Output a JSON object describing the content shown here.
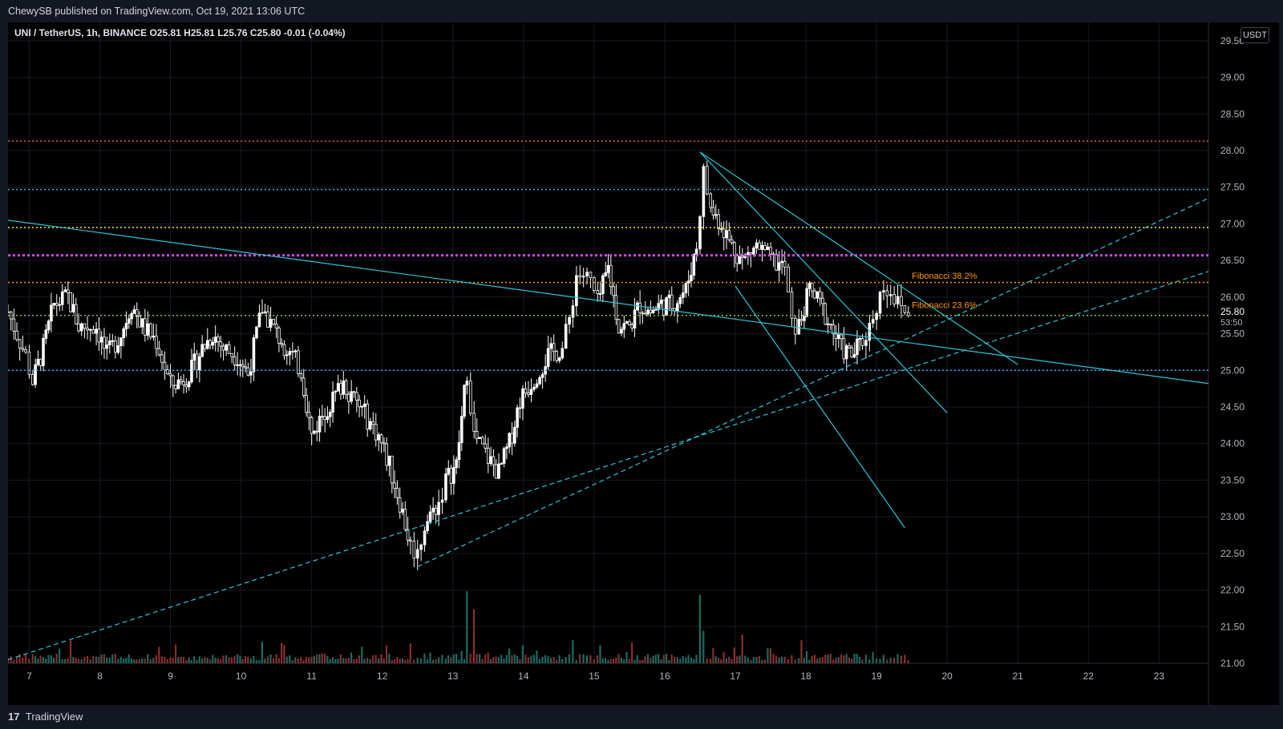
{
  "header": {
    "published": "ChewySB published on TradingView.com, Oct 19, 2021 13:06 UTC"
  },
  "legend": {
    "text": "UNI / TetherUS, 1h, BINANCE  O25.81  H25.81  L25.76  C25.80  -0.01 (-0.04%)"
  },
  "currency": "USDT",
  "brand": {
    "logo": "17",
    "name": "TradingView"
  },
  "chart_data": {
    "type": "candlestick",
    "symbol": "UNI / TetherUS",
    "interval": "1h",
    "exchange": "BINANCE",
    "ohlc_last": {
      "open": 25.81,
      "high": 25.81,
      "low": 25.76,
      "close": 25.8,
      "change": -0.01,
      "change_pct": -0.04
    },
    "x_range": [
      6.7,
      23.7
    ],
    "y_range": [
      21.0,
      29.75
    ],
    "x_ticks": [
      "7",
      "8",
      "9",
      "10",
      "11",
      "12",
      "13",
      "14",
      "15",
      "16",
      "17",
      "18",
      "19",
      "20",
      "21",
      "22",
      "23"
    ],
    "y_ticks": [
      "29.50",
      "29.00",
      "28.50",
      "28.00",
      "27.50",
      "27.00",
      "26.50",
      "26.00",
      "25.50",
      "25.00",
      "24.50",
      "24.00",
      "23.50",
      "23.00",
      "22.50",
      "22.00",
      "21.50",
      "21.00"
    ],
    "price_tag": {
      "price": 25.8,
      "countdown": "53:50",
      "label": "25.80"
    },
    "path_anchors": [
      [
        6.7,
        25.8
      ],
      [
        6.95,
        25.2
      ],
      [
        7.05,
        24.85
      ],
      [
        7.2,
        25.3
      ],
      [
        7.35,
        25.9
      ],
      [
        7.55,
        26.0
      ],
      [
        7.7,
        25.6
      ],
      [
        7.95,
        25.6
      ],
      [
        8.1,
        25.2
      ],
      [
        8.3,
        25.5
      ],
      [
        8.45,
        25.9
      ],
      [
        8.6,
        25.6
      ],
      [
        8.8,
        25.4
      ],
      [
        9.0,
        24.8
      ],
      [
        9.15,
        24.85
      ],
      [
        9.3,
        25.0
      ],
      [
        9.45,
        25.3
      ],
      [
        9.6,
        25.5
      ],
      [
        9.75,
        25.3
      ],
      [
        9.95,
        25.2
      ],
      [
        10.1,
        24.95
      ],
      [
        10.3,
        25.85
      ],
      [
        10.5,
        25.5
      ],
      [
        10.65,
        25.3
      ],
      [
        10.85,
        25.0
      ],
      [
        11.0,
        24.1
      ],
      [
        11.15,
        24.4
      ],
      [
        11.3,
        24.6
      ],
      [
        11.45,
        24.85
      ],
      [
        11.6,
        24.6
      ],
      [
        11.75,
        24.4
      ],
      [
        11.95,
        24.1
      ],
      [
        12.1,
        23.7
      ],
      [
        12.25,
        23.2
      ],
      [
        12.4,
        22.6
      ],
      [
        12.5,
        22.5
      ],
      [
        12.6,
        22.9
      ],
      [
        12.8,
        23.2
      ],
      [
        12.9,
        23.5
      ],
      [
        13.05,
        23.7
      ],
      [
        13.2,
        25.0
      ],
      [
        13.3,
        24.1
      ],
      [
        13.5,
        23.8
      ],
      [
        13.65,
        23.6
      ],
      [
        13.8,
        24.0
      ],
      [
        13.95,
        24.6
      ],
      [
        14.15,
        24.9
      ],
      [
        14.35,
        25.2
      ],
      [
        14.55,
        25.3
      ],
      [
        14.65,
        25.7
      ],
      [
        14.75,
        26.3
      ],
      [
        14.85,
        26.3
      ],
      [
        14.95,
        26.2
      ],
      [
        15.05,
        25.9
      ],
      [
        15.2,
        26.4
      ],
      [
        15.35,
        25.6
      ],
      [
        15.5,
        25.6
      ],
      [
        15.65,
        25.9
      ],
      [
        15.8,
        25.8
      ],
      [
        15.95,
        25.9
      ],
      [
        16.1,
        25.9
      ],
      [
        16.3,
        26.1
      ],
      [
        16.45,
        26.7
      ],
      [
        16.55,
        27.7
      ],
      [
        16.65,
        27.2
      ],
      [
        16.8,
        27.0
      ],
      [
        16.95,
        26.7
      ],
      [
        17.1,
        26.5
      ],
      [
        17.3,
        26.7
      ],
      [
        17.5,
        26.5
      ],
      [
        17.7,
        26.4
      ],
      [
        17.8,
        25.6
      ],
      [
        17.9,
        25.6
      ],
      [
        18.05,
        26.1
      ],
      [
        18.2,
        25.9
      ],
      [
        18.35,
        25.6
      ],
      [
        18.5,
        25.3
      ],
      [
        18.65,
        25.2
      ],
      [
        18.8,
        25.4
      ],
      [
        18.9,
        25.6
      ],
      [
        19.0,
        25.9
      ],
      [
        19.1,
        26.15
      ],
      [
        19.2,
        26.1
      ],
      [
        19.3,
        25.9
      ],
      [
        19.4,
        25.8
      ],
      [
        19.5,
        25.8
      ]
    ],
    "volume_spikes": [
      [
        13.2,
        1.0
      ],
      [
        13.3,
        0.75
      ],
      [
        16.5,
        0.95
      ],
      [
        16.55,
        0.45
      ],
      [
        17.1,
        0.4
      ],
      [
        17.95,
        0.32
      ],
      [
        7.6,
        0.32
      ],
      [
        10.3,
        0.3
      ],
      [
        14.7,
        0.32
      ]
    ],
    "horizontal_levels": [
      {
        "price": 28.13,
        "color": "#ef5350",
        "style": "dotted"
      },
      {
        "price": 27.47,
        "color": "#26c6da",
        "style": "dotted"
      },
      {
        "price": 26.95,
        "color": "#ffeb3b",
        "style": "dotted"
      },
      {
        "price": 26.57,
        "color": "#e040fb",
        "style": "dotted-thick"
      },
      {
        "price": 26.2,
        "color": "#ff9800",
        "style": "dotted"
      },
      {
        "price": 25.75,
        "color": "#8bc34a",
        "style": "dotted"
      },
      {
        "price": 25.0,
        "color": "#42a5f5",
        "style": "dotted"
      }
    ],
    "trend_lines": [
      {
        "from": [
          6.7,
          27.05
        ],
        "to": [
          23.7,
          24.82
        ],
        "color": "#26c6da",
        "style": "solid"
      },
      {
        "from": [
          16.5,
          27.98
        ],
        "to": [
          21.0,
          25.08
        ],
        "color": "#26c6da",
        "style": "solid"
      },
      {
        "from": [
          16.5,
          27.98
        ],
        "to": [
          20.0,
          24.42
        ],
        "color": "#26c6da",
        "style": "solid"
      },
      {
        "from": [
          17.0,
          26.15
        ],
        "to": [
          19.4,
          22.85
        ],
        "color": "#26c6da",
        "style": "solid"
      },
      {
        "from": [
          6.7,
          21.05
        ],
        "to": [
          23.7,
          26.35
        ],
        "color": "#26c6da",
        "style": "dashed"
      },
      {
        "from": [
          12.5,
          22.32
        ],
        "to": [
          23.7,
          27.35
        ],
        "color": "#26c6da",
        "style": "dashed"
      }
    ],
    "annotations": [
      {
        "text": "Fibonacci 38.2%",
        "x": 19.5,
        "y": 26.25,
        "color": "#ff9800"
      },
      {
        "text": "Fibonacci 23.6%",
        "x": 19.5,
        "y": 25.85,
        "color": "#ff9800"
      }
    ]
  }
}
